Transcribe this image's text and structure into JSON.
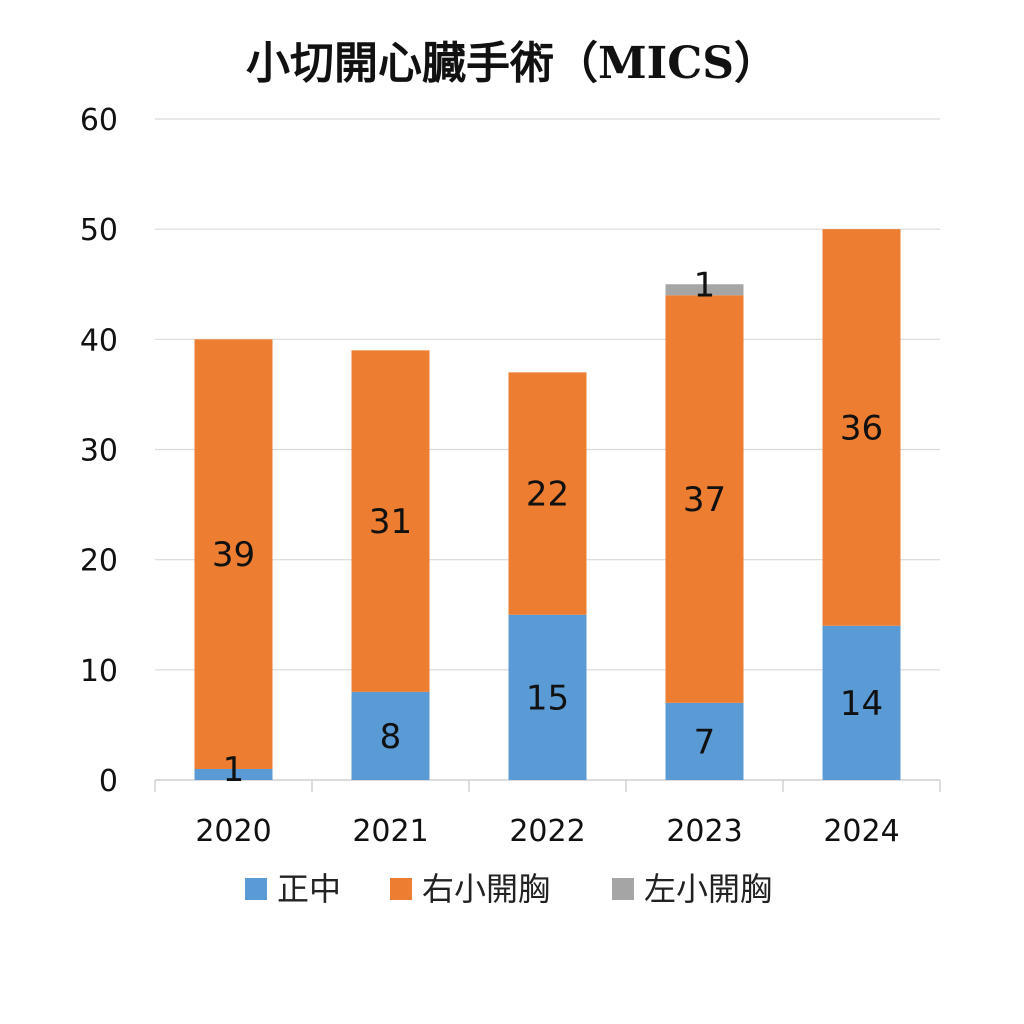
{
  "chart_data": {
    "type": "bar",
    "stacked": true,
    "title": "小切開心臓手術（MICS）",
    "categories": [
      "2020",
      "2021",
      "2022",
      "2023",
      "2024"
    ],
    "series": [
      {
        "name": "正中",
        "color": "#5B9BD5",
        "values": [
          1,
          8,
          15,
          7,
          14
        ]
      },
      {
        "name": "右小開胸",
        "color": "#ED7D31",
        "values": [
          39,
          31,
          22,
          37,
          36
        ]
      },
      {
        "name": "左小開胸",
        "color": "#A5A5A5",
        "values": [
          0,
          0,
          0,
          1,
          0
        ]
      }
    ],
    "ylim": [
      0,
      60
    ],
    "yticks": [
      0,
      10,
      20,
      30,
      40,
      50,
      60
    ],
    "grid": true,
    "legend": "bottom"
  }
}
